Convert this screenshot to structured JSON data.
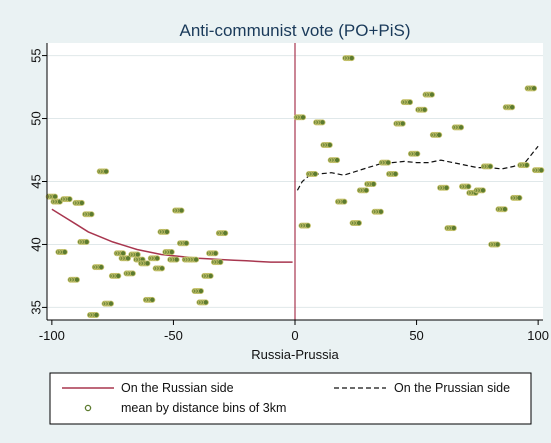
{
  "chart_data": {
    "type": "scatter",
    "title": "Anti-communist vote (PO+PiS)",
    "xlabel": "Russia-Prussia",
    "ylabel": "",
    "xlim": [
      -102,
      102
    ],
    "ylim": [
      34,
      56
    ],
    "xticks": [
      -100,
      -50,
      0,
      50,
      100
    ],
    "xtick_labels": [
      "-100",
      "-50",
      "0",
      "50",
      "100"
    ],
    "yticks": [
      35,
      40,
      45,
      50,
      55
    ],
    "ytick_labels": [
      "35",
      "40",
      "45",
      "50",
      "55"
    ],
    "grid": true,
    "legend_position": "bottom",
    "reference_line": {
      "x": 0,
      "color": "#a8364f"
    },
    "colors": {
      "background": "#eaf2f3",
      "plot_background": "#ffffff",
      "grid": "#e0e8ea",
      "points_fill": "#5c7b2f",
      "points_stroke": "#c9c46e",
      "russian_line": "#a8364f",
      "prussian_line": "#111111"
    },
    "legend": [
      {
        "label": "On the Russian side",
        "style": "solid",
        "series": "russian"
      },
      {
        "label": "On the Prussian side",
        "style": "dashed",
        "series": "prussian"
      },
      {
        "label": "mean by distance bins of 3km",
        "style": "marker",
        "series": "points"
      }
    ],
    "points": [
      [
        -100,
        43.8
      ],
      [
        -98,
        43.4
      ],
      [
        -96,
        39.4
      ],
      [
        -94,
        43.6
      ],
      [
        -91,
        37.2
      ],
      [
        -89,
        43.3
      ],
      [
        -87,
        40.2
      ],
      [
        -85,
        42.4
      ],
      [
        -83,
        34.4
      ],
      [
        -81,
        38.2
      ],
      [
        -79,
        45.8
      ],
      [
        -77,
        35.3
      ],
      [
        -74,
        37.5
      ],
      [
        -72,
        39.3
      ],
      [
        -70,
        38.9
      ],
      [
        -68,
        37.7
      ],
      [
        -66,
        39.2
      ],
      [
        -64,
        38.8
      ],
      [
        -62,
        38.5
      ],
      [
        -60,
        35.6
      ],
      [
        -58,
        38.9
      ],
      [
        -56,
        38.1
      ],
      [
        -54,
        41.0
      ],
      [
        -52,
        39.4
      ],
      [
        -50,
        38.8
      ],
      [
        -48,
        42.7
      ],
      [
        -46,
        40.1
      ],
      [
        -44,
        38.8
      ],
      [
        -42,
        38.8
      ],
      [
        -40,
        36.3
      ],
      [
        -38,
        35.4
      ],
      [
        -36,
        37.5
      ],
      [
        -34,
        39.3
      ],
      [
        -32,
        38.6
      ],
      [
        -30,
        40.9
      ],
      [
        2,
        50.1
      ],
      [
        4,
        41.5
      ],
      [
        7,
        45.6
      ],
      [
        10,
        49.7
      ],
      [
        13,
        47.9
      ],
      [
        16,
        46.7
      ],
      [
        19,
        43.4
      ],
      [
        22,
        54.8
      ],
      [
        25,
        41.7
      ],
      [
        28,
        44.3
      ],
      [
        31,
        44.8
      ],
      [
        34,
        42.6
      ],
      [
        37,
        46.5
      ],
      [
        40,
        45.6
      ],
      [
        43,
        49.6
      ],
      [
        46,
        51.3
      ],
      [
        49,
        47.2
      ],
      [
        52,
        50.7
      ],
      [
        55,
        51.9
      ],
      [
        58,
        48.7
      ],
      [
        61,
        44.5
      ],
      [
        64,
        41.3
      ],
      [
        67,
        49.3
      ],
      [
        70,
        44.6
      ],
      [
        73,
        44.1
      ],
      [
        76,
        44.3
      ],
      [
        79,
        46.2
      ],
      [
        82,
        40.0
      ],
      [
        85,
        42.8
      ],
      [
        88,
        50.9
      ],
      [
        91,
        43.7
      ],
      [
        94,
        46.3
      ],
      [
        97,
        52.4
      ],
      [
        100,
        45.9
      ]
    ],
    "series": [
      {
        "name": "On the Russian side",
        "style": "solid",
        "x": [
          -100,
          -95,
          -90,
          -85,
          -80,
          -75,
          -70,
          -65,
          -60,
          -55,
          -50,
          -45,
          -40,
          -35,
          -30,
          -25,
          -20,
          -15,
          -10,
          -5,
          -1
        ],
        "y": [
          42.8,
          42.2,
          41.6,
          41.0,
          40.6,
          40.2,
          39.9,
          39.6,
          39.4,
          39.2,
          39.1,
          39.0,
          38.9,
          38.85,
          38.8,
          38.75,
          38.7,
          38.65,
          38.6,
          38.6,
          38.6
        ]
      },
      {
        "name": "On the Prussian side",
        "style": "dashed",
        "x": [
          1,
          3,
          6,
          10,
          15,
          20,
          25,
          30,
          35,
          40,
          45,
          50,
          55,
          60,
          65,
          70,
          75,
          80,
          85,
          90,
          95,
          100
        ],
        "y": [
          44.3,
          45.0,
          45.5,
          45.6,
          45.7,
          45.5,
          45.8,
          46.1,
          46.4,
          46.5,
          46.6,
          46.5,
          46.5,
          46.7,
          46.5,
          46.3,
          46.1,
          46.1,
          46.0,
          46.2,
          46.6,
          47.8
        ]
      }
    ]
  }
}
